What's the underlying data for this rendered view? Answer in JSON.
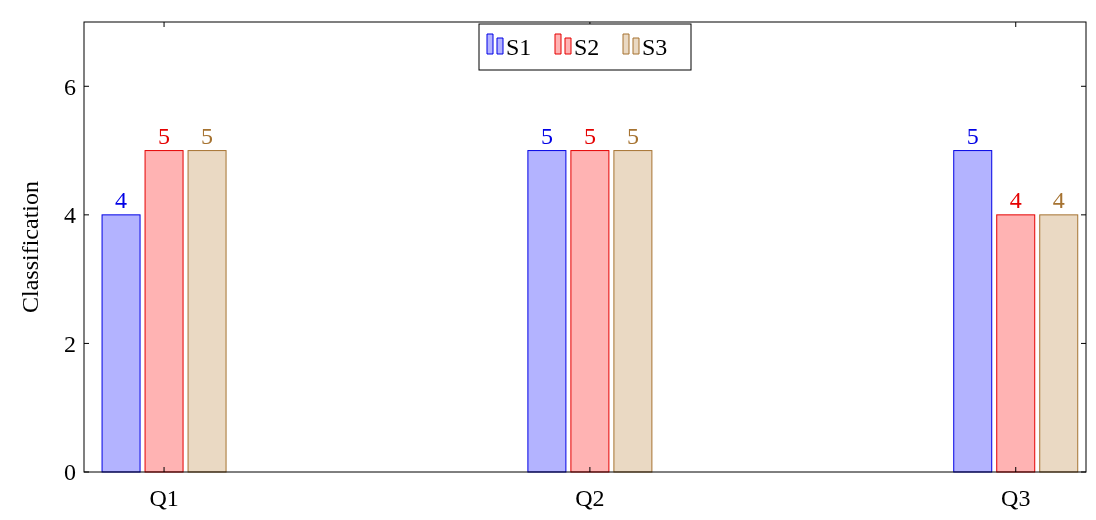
{
  "chart_data": {
    "type": "bar",
    "ylabel": "Classification",
    "categories": [
      "Q1",
      "Q2",
      "Q3"
    ],
    "series": [
      {
        "name": "S1",
        "color": "#b3b3ff",
        "values": [
          4,
          5,
          5
        ]
      },
      {
        "name": "S2",
        "color": "#ffb3b3",
        "values": [
          5,
          5,
          4
        ]
      },
      {
        "name": "S3",
        "color": "#ead9c3",
        "values": [
          5,
          5,
          4
        ]
      }
    ],
    "ylim": [
      0,
      7
    ],
    "yticks": [
      0,
      2,
      4,
      6
    ],
    "data_labels": true,
    "legend": "top",
    "grid": false
  }
}
